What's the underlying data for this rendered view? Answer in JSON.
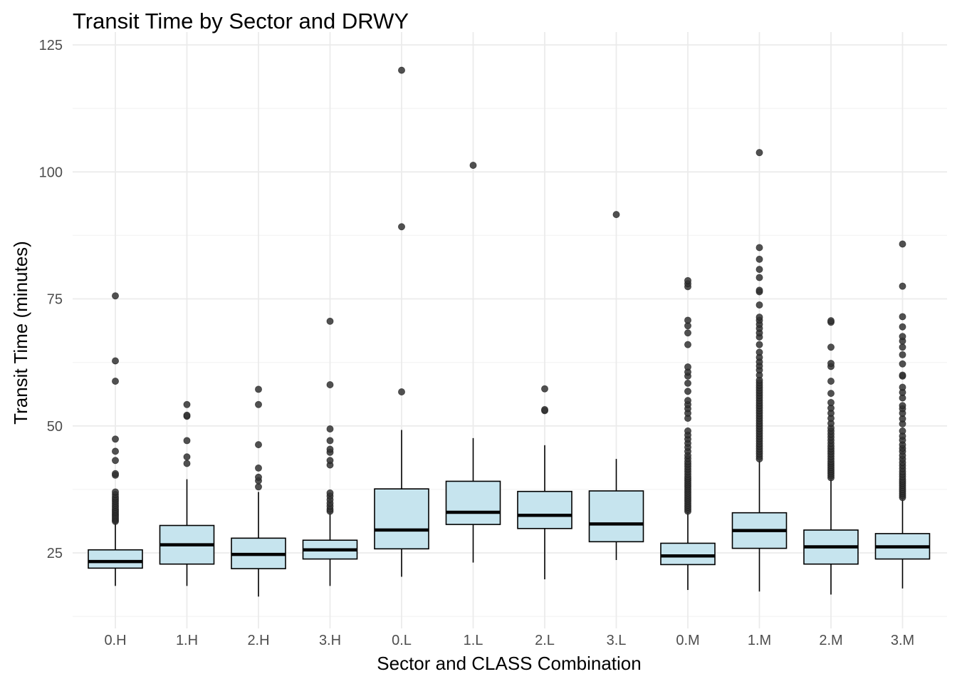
{
  "chart_data": {
    "type": "boxplot",
    "title": "Transit Time by Sector and DRWY",
    "xlabel": "Sector and CLASS Combination",
    "ylabel": "Transit Time (minutes)",
    "ylim": [
      12,
      125
    ],
    "yticks": [
      25,
      50,
      75,
      100,
      125
    ],
    "grid": true,
    "legend": "none",
    "colors": {
      "box_fill": "#c6e4ee",
      "box_stroke": "#000000",
      "median": "#000000",
      "outlier": "#333333",
      "grid_major": "#ebebeb",
      "grid_minor": "#f4f4f4"
    },
    "categories": [
      "0.H",
      "1.H",
      "2.H",
      "3.H",
      "0.L",
      "1.L",
      "2.L",
      "3.L",
      "0.M",
      "1.M",
      "2.M",
      "3.M"
    ],
    "boxes": [
      {
        "category": "0.H",
        "whisker_low": 18.5,
        "q1": 22.0,
        "median": 23.3,
        "q3": 25.6,
        "whisker_high": 31.0,
        "outliers": [
          31.2,
          31.5,
          31.8,
          32.1,
          32.4,
          32.7,
          33.0,
          33.3,
          33.6,
          34.0,
          34.4,
          34.8,
          35.2,
          35.6,
          36.0,
          36.5,
          37.0,
          40.3,
          40.6,
          43.2,
          45.0,
          47.4,
          58.8,
          62.8,
          75.6
        ]
      },
      {
        "category": "1.H",
        "whisker_low": 18.5,
        "q1": 22.8,
        "median": 26.6,
        "q3": 30.4,
        "whisker_high": 39.5,
        "outliers": [
          42.6,
          43.9,
          47.1,
          51.9,
          52.1,
          54.2
        ]
      },
      {
        "category": "2.H",
        "whisker_low": 16.4,
        "q1": 21.9,
        "median": 24.7,
        "q3": 27.9,
        "whisker_high": 37.0,
        "outliers": [
          38.0,
          39.2,
          39.9,
          41.7,
          46.3,
          54.2,
          57.2
        ]
      },
      {
        "category": "3.H",
        "whisker_low": 18.5,
        "q1": 23.8,
        "median": 25.6,
        "q3": 27.5,
        "whisker_high": 32.8,
        "outliers": [
          33.2,
          33.6,
          34.2,
          34.8,
          35.5,
          36.2,
          36.8,
          42.3,
          43.2,
          44.8,
          45.4,
          47.1,
          49.4,
          58.1,
          70.6
        ]
      },
      {
        "category": "0.L",
        "whisker_low": 20.3,
        "q1": 25.8,
        "median": 29.5,
        "q3": 37.6,
        "whisker_high": 49.2,
        "outliers": [
          56.7,
          89.2,
          120.0
        ]
      },
      {
        "category": "1.L",
        "whisker_low": 23.1,
        "q1": 30.6,
        "median": 33.0,
        "q3": 39.1,
        "whisker_high": 47.6,
        "outliers": [
          101.3
        ]
      },
      {
        "category": "2.L",
        "whisker_low": 19.8,
        "q1": 29.8,
        "median": 32.4,
        "q3": 37.1,
        "whisker_high": 46.2,
        "outliers": [
          53.0,
          53.2,
          57.3
        ]
      },
      {
        "category": "3.L",
        "whisker_low": 23.6,
        "q1": 27.2,
        "median": 30.7,
        "q3": 37.2,
        "whisker_high": 43.5,
        "outliers": [
          91.6
        ]
      },
      {
        "category": "0.M",
        "whisker_low": 17.7,
        "q1": 22.7,
        "median": 24.4,
        "q3": 26.9,
        "whisker_high": 33.0,
        "outliers": [
          33.2,
          33.6,
          34.0,
          34.4,
          34.8,
          35.2,
          35.6,
          36.0,
          36.4,
          36.8,
          37.2,
          37.6,
          38.0,
          38.4,
          38.8,
          39.2,
          39.6,
          40.0,
          40.5,
          41.0,
          41.5,
          42.0,
          42.5,
          43.0,
          43.6,
          44.2,
          45.0,
          45.8,
          46.6,
          47.4,
          48.2,
          49.0,
          51.5,
          52.5,
          53.4,
          54.2,
          55.0,
          56.8,
          58.4,
          59.8,
          60.6,
          61.6,
          66.0,
          68.3,
          69.7,
          70.8,
          77.4,
          78.0,
          78.6
        ]
      },
      {
        "category": "1.M",
        "whisker_low": 17.4,
        "q1": 25.9,
        "median": 29.4,
        "q3": 32.9,
        "whisker_high": 43.2,
        "outliers": [
          43.5,
          44.0,
          44.5,
          45.0,
          45.5,
          46.0,
          46.5,
          47.0,
          47.5,
          48.0,
          48.5,
          49.0,
          49.5,
          50.0,
          50.5,
          51.0,
          51.5,
          52.0,
          52.5,
          53.0,
          53.5,
          54.0,
          54.5,
          55.0,
          55.5,
          56.0,
          56.5,
          57.0,
          57.5,
          58.0,
          58.5,
          59.0,
          60.0,
          61.0,
          61.8,
          62.6,
          63.5,
          64.5,
          66.0,
          67.5,
          68.3,
          69.2,
          70.0,
          70.8,
          71.4,
          73.8,
          76.4,
          76.7,
          79.2,
          80.8,
          82.8,
          85.1,
          103.8
        ]
      },
      {
        "category": "2.M",
        "whisker_low": 16.8,
        "q1": 22.8,
        "median": 26.2,
        "q3": 29.5,
        "whisker_high": 39.5,
        "outliers": [
          39.8,
          40.2,
          40.6,
          41.0,
          41.4,
          41.8,
          42.2,
          42.6,
          43.0,
          43.5,
          44.0,
          44.5,
          45.0,
          45.5,
          46.0,
          46.6,
          47.2,
          47.8,
          48.4,
          49.0,
          49.6,
          50.5,
          51.5,
          52.5,
          53.5,
          54.6,
          56.4,
          58.8,
          61.7,
          62.3,
          65.5,
          70.4,
          70.7
        ]
      },
      {
        "category": "3.M",
        "whisker_low": 18.0,
        "q1": 23.8,
        "median": 26.2,
        "q3": 28.8,
        "whisker_high": 35.6,
        "outliers": [
          35.9,
          36.3,
          36.7,
          37.1,
          37.5,
          37.9,
          38.3,
          38.7,
          39.1,
          39.5,
          40.0,
          40.5,
          41.0,
          41.6,
          42.2,
          42.8,
          43.5,
          44.2,
          45.0,
          45.6,
          46.3,
          47.2,
          48.0,
          49.0,
          50.4,
          51.4,
          52.5,
          53.4,
          54.0,
          55.5,
          56.6,
          57.6,
          59.8,
          60.0,
          62.2,
          64.0,
          65.5,
          66.7,
          67.6,
          69.5,
          71.5,
          77.5,
          85.8
        ]
      }
    ]
  }
}
